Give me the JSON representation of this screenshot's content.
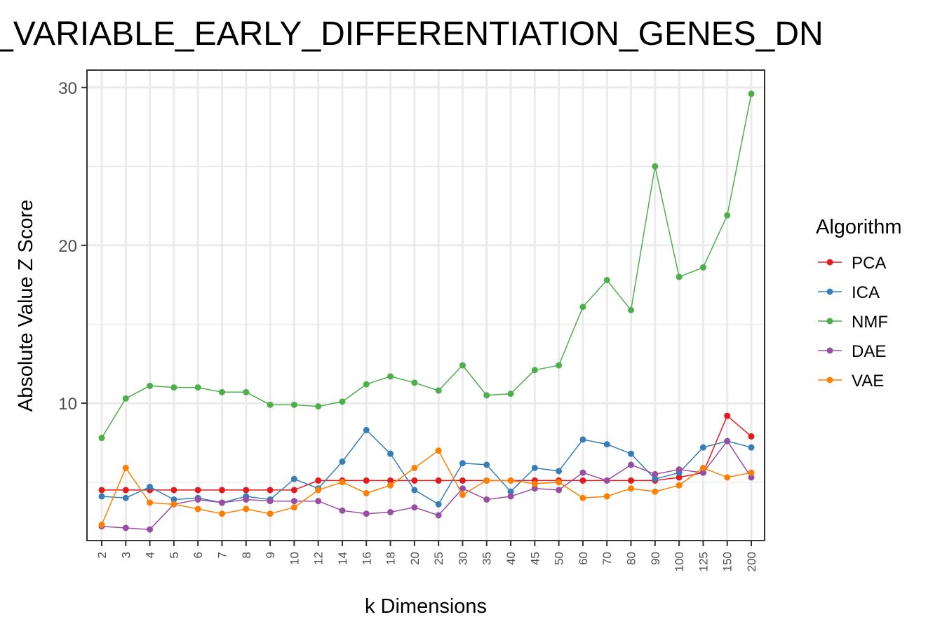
{
  "chart_data": {
    "type": "line",
    "title": "_VARIABLE_EARLY_DIFFERENTIATION_GENES_DN",
    "xlabel": "k Dimensions",
    "ylabel": "Absolute Value Z Score",
    "legend_title": "Algorithm",
    "legend_position": "right",
    "grid": true,
    "ylim": [
      1.3,
      31.1
    ],
    "yticks": [
      10,
      20,
      30
    ],
    "categories": [
      "2",
      "3",
      "4",
      "5",
      "6",
      "7",
      "8",
      "9",
      "10",
      "12",
      "14",
      "16",
      "18",
      "20",
      "25",
      "30",
      "35",
      "40",
      "45",
      "50",
      "60",
      "70",
      "80",
      "90",
      "100",
      "125",
      "150",
      "200"
    ],
    "series": [
      {
        "name": "PCA",
        "color": "#e41a1c",
        "values": [
          4.5,
          4.5,
          4.5,
          4.5,
          4.5,
          4.5,
          4.5,
          4.5,
          4.5,
          5.1,
          5.1,
          5.1,
          5.1,
          5.1,
          5.1,
          5.1,
          5.1,
          5.1,
          5.1,
          5.1,
          5.1,
          5.1,
          5.1,
          5.1,
          5.3,
          5.6,
          9.2,
          7.9
        ]
      },
      {
        "name": "ICA",
        "color": "#377eb8",
        "values": [
          4.1,
          4.0,
          4.7,
          3.9,
          4.0,
          3.7,
          4.1,
          3.9,
          5.2,
          4.6,
          6.3,
          8.3,
          6.8,
          4.5,
          3.6,
          6.2,
          6.1,
          4.4,
          5.9,
          5.7,
          7.7,
          7.4,
          6.8,
          5.2,
          5.6,
          7.2,
          7.6,
          7.2
        ]
      },
      {
        "name": "NMF",
        "color": "#4daf4a",
        "values": [
          7.8,
          10.3,
          11.1,
          11.0,
          11.0,
          10.7,
          10.7,
          9.9,
          9.9,
          9.8,
          10.1,
          11.2,
          11.7,
          11.3,
          10.8,
          12.4,
          10.5,
          10.6,
          12.1,
          12.4,
          16.1,
          17.8,
          15.9,
          25.0,
          18.0,
          18.6,
          21.9,
          29.6
        ]
      },
      {
        "name": "DAE",
        "color": "#984ea3",
        "values": [
          2.2,
          2.1,
          2.0,
          3.6,
          3.9,
          3.7,
          3.9,
          3.8,
          3.8,
          3.8,
          3.2,
          3.0,
          3.1,
          3.4,
          2.9,
          4.6,
          3.9,
          4.1,
          4.6,
          4.5,
          5.6,
          5.1,
          6.1,
          5.5,
          5.8,
          5.6,
          7.6,
          5.3
        ]
      },
      {
        "name": "VAE",
        "color": "#ff7f00",
        "values": [
          2.3,
          5.9,
          3.7,
          3.6,
          3.3,
          3.0,
          3.3,
          3.0,
          3.4,
          4.5,
          5.0,
          4.3,
          4.8,
          5.9,
          7.0,
          4.2,
          5.1,
          5.1,
          4.9,
          5.0,
          4.0,
          4.1,
          4.6,
          4.4,
          4.8,
          5.9,
          5.3,
          5.6
        ]
      }
    ]
  }
}
